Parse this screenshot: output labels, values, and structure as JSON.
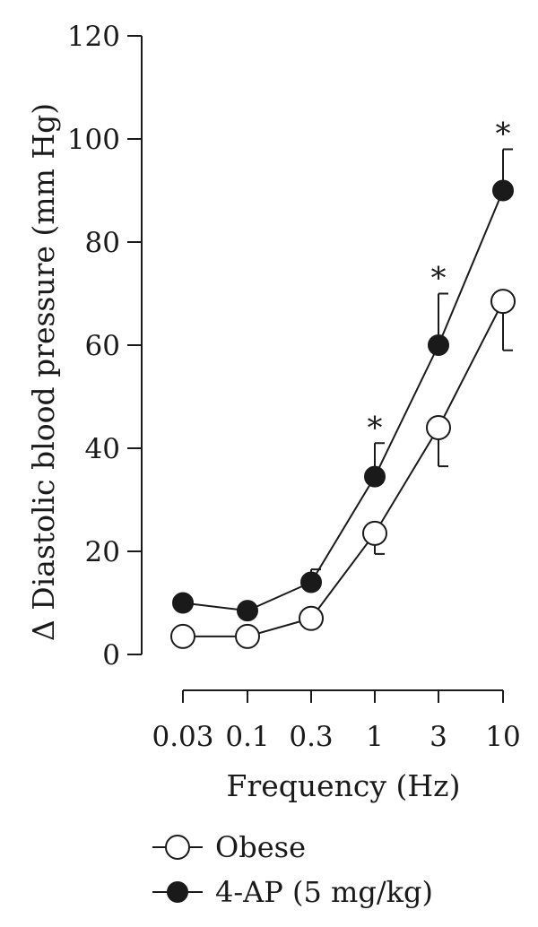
{
  "chart_data": {
    "type": "line",
    "xlabel": "Frequency (Hz)",
    "ylabel": "Δ Diastolic blood pressure (mm Hg)",
    "categories": [
      "0.03",
      "0.1",
      "0.3",
      "1",
      "3",
      "10"
    ],
    "ylim": [
      0,
      120
    ],
    "yticks": [
      "0",
      "20",
      "40",
      "60",
      "80",
      "100",
      "120"
    ],
    "grid": false,
    "legend_position": "bottom-left",
    "series": [
      {
        "name": "Obese",
        "marker": "open-circle",
        "values": [
          3.5,
          3.5,
          7,
          23.5,
          44,
          68.5
        ],
        "error_upper": [
          null,
          null,
          null,
          null,
          null,
          null
        ],
        "error_lower": [
          null,
          null,
          null,
          19.5,
          36.5,
          59
        ]
      },
      {
        "name": "4-AP (5 mg/kg)",
        "marker": "filled-circle",
        "values": [
          10,
          8.5,
          14,
          34.5,
          60,
          90
        ],
        "error_upper": [
          null,
          null,
          16.5,
          41,
          70,
          98
        ],
        "error_lower": [
          null,
          null,
          null,
          null,
          null,
          null
        ]
      }
    ],
    "significance_marker": "*",
    "significant_categories": [
      "1",
      "3",
      "10"
    ]
  },
  "colors": {
    "ink": "#1a1a1a",
    "background": "#ffffff"
  }
}
